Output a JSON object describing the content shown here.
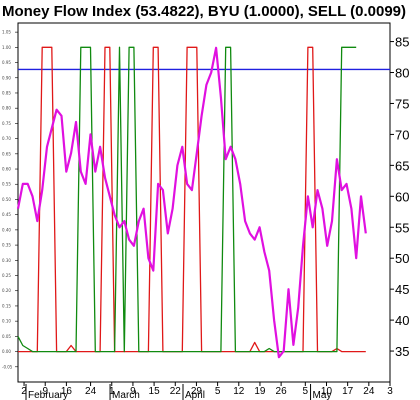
{
  "chart_data": {
    "type": "line",
    "title": "Money Flow Index (53.4822), BYU (1.0000), SELL (0.0099)",
    "right_axis": {
      "ylim": [
        30,
        88
      ],
      "ticks": [
        35,
        40,
        45,
        50,
        55,
        60,
        65,
        70,
        75,
        80,
        85
      ]
    },
    "left_axis": {
      "ylim": [
        -0.1,
        1.08
      ],
      "ticks": [
        "1.05",
        "1.00",
        "0.95",
        "0.90",
        "0.85",
        "0.80",
        "0.75",
        "0.70",
        "0.65",
        "0.60",
        "0.55",
        "0.50",
        "0.45",
        "0.40",
        "0.35",
        "0.30",
        "0.25",
        "0.20",
        "0.15",
        "0.10",
        "0.05",
        "0.00",
        "-0.05"
      ]
    },
    "x_ticks": [
      "2",
      "9",
      "16",
      "24",
      "1",
      "9",
      "15",
      "22",
      "29",
      "5",
      "12",
      "19",
      "26",
      "5",
      "10",
      "17",
      "24",
      "3"
    ],
    "months": [
      "February",
      "March",
      "April",
      "May"
    ],
    "reference_line": {
      "value": 80.5,
      "color": "#2020e0"
    },
    "series": [
      {
        "color": "#e010e0",
        "axis": "right",
        "x": [
          0,
          1,
          2,
          3,
          4,
          5,
          6,
          7,
          8,
          9,
          10,
          11,
          12,
          13,
          14,
          15,
          16,
          17,
          18,
          19,
          20,
          21,
          22,
          23,
          24,
          25,
          26,
          27,
          28,
          29,
          30,
          31,
          32,
          33,
          34,
          35,
          36,
          37,
          38,
          39,
          40,
          41,
          42,
          43,
          44,
          45,
          46,
          47,
          48,
          49,
          50,
          51,
          52,
          53,
          54,
          55,
          56,
          57,
          58,
          59,
          60,
          61,
          62,
          63,
          64,
          65,
          66,
          67,
          68,
          69,
          70,
          71,
          72,
          73,
          74,
          75,
          76
        ],
        "values": [
          58,
          62,
          62,
          60,
          56,
          61,
          68,
          71,
          74,
          73,
          64,
          67,
          72,
          64,
          62,
          70,
          64,
          68,
          63,
          60,
          57,
          55,
          56,
          53,
          52,
          56,
          58,
          50,
          48,
          62,
          61,
          54,
          58,
          65,
          68,
          62,
          61,
          67,
          73,
          78,
          80,
          84,
          76,
          66,
          68,
          66,
          62,
          56,
          54,
          53,
          55,
          51,
          48,
          40,
          34,
          35,
          45,
          36,
          42,
          52,
          60,
          55,
          61,
          58,
          52,
          56,
          66,
          61,
          62,
          58,
          50,
          60,
          54,
          null,
          null,
          null,
          null
        ]
      },
      {
        "color": "#e01818",
        "axis": "left",
        "x": [
          0,
          1,
          2,
          3,
          4,
          5,
          6,
          7,
          8,
          9,
          10,
          11,
          12,
          13,
          14,
          15,
          16,
          17,
          18,
          19,
          20,
          21,
          22,
          23,
          24,
          25,
          26,
          27,
          28,
          29,
          30,
          31,
          32,
          33,
          34,
          35,
          36,
          37,
          38,
          39,
          40,
          41,
          42,
          43,
          44,
          45,
          46,
          47,
          48,
          49,
          50,
          51,
          52,
          53,
          54,
          55,
          56,
          57,
          58,
          59,
          60,
          61,
          62,
          63,
          64,
          65,
          66,
          67,
          68,
          69,
          70,
          71,
          72,
          73,
          74,
          75,
          76
        ],
        "values": [
          0.0,
          0.0,
          0.0,
          0.0,
          0.0,
          1.0,
          1.0,
          1.0,
          0.0,
          0.0,
          0.0,
          0.02,
          0.0,
          0.0,
          0.0,
          0.0,
          0.0,
          0.0,
          1.0,
          1.0,
          0.0,
          0.0,
          0.0,
          0.0,
          0.0,
          0.0,
          0.0,
          0.0,
          1.0,
          1.0,
          0.0,
          0.0,
          0.0,
          0.0,
          0.0,
          1.0,
          1.0,
          1.0,
          0.0,
          0.0,
          0.0,
          0.0,
          0.0,
          0.0,
          0.0,
          0.0,
          0.0,
          0.0,
          0.0,
          0.03,
          0.0,
          0.0,
          0.0,
          0.0,
          0.0,
          0.0,
          0.0,
          0.0,
          0.0,
          0.0,
          1.0,
          1.0,
          0.0,
          0.0,
          0.0,
          0.0,
          0.01,
          0.0,
          0.0,
          0.0,
          0.0,
          0.0,
          0.0,
          null,
          null,
          null,
          null
        ]
      },
      {
        "color": "#108a10",
        "axis": "left",
        "x": [
          0,
          1,
          2,
          3,
          4,
          5,
          6,
          7,
          8,
          9,
          10,
          11,
          12,
          13,
          14,
          15,
          16,
          17,
          18,
          19,
          20,
          21,
          22,
          23,
          24,
          25,
          26,
          27,
          28,
          29,
          30,
          31,
          32,
          33,
          34,
          35,
          36,
          37,
          38,
          39,
          40,
          41,
          42,
          43,
          44,
          45,
          46,
          47,
          48,
          49,
          50,
          51,
          52,
          53,
          54,
          55,
          56,
          57,
          58,
          59,
          60,
          61,
          62,
          63,
          64,
          65,
          66,
          67,
          68,
          69,
          70,
          71,
          72,
          73,
          74,
          75,
          76
        ],
        "values": [
          0.05,
          0.02,
          0.01,
          0.0,
          0.0,
          0.0,
          0.0,
          0.0,
          0.0,
          0.0,
          0.0,
          0.0,
          0.0,
          1.0,
          1.0,
          1.0,
          0.0,
          0.0,
          0.0,
          0.0,
          0.0,
          1.0,
          0.0,
          1.0,
          1.0,
          0.0,
          0.0,
          0.0,
          0.0,
          0.0,
          0.0,
          0.0,
          0.0,
          0.0,
          0.0,
          0.0,
          0.0,
          0.0,
          0.0,
          0.0,
          0.0,
          0.0,
          0.0,
          1.0,
          1.0,
          0.0,
          0.0,
          0.0,
          0.0,
          0.0,
          0.0,
          0.0,
          0.01,
          0.0,
          0.0,
          0.0,
          0.0,
          0.0,
          0.0,
          0.0,
          0.0,
          0.0,
          0.0,
          0.0,
          0.0,
          0.0,
          0.0,
          1.0,
          1.0,
          1.0,
          1.0,
          null,
          null,
          null,
          null,
          null,
          null
        ]
      }
    ]
  }
}
